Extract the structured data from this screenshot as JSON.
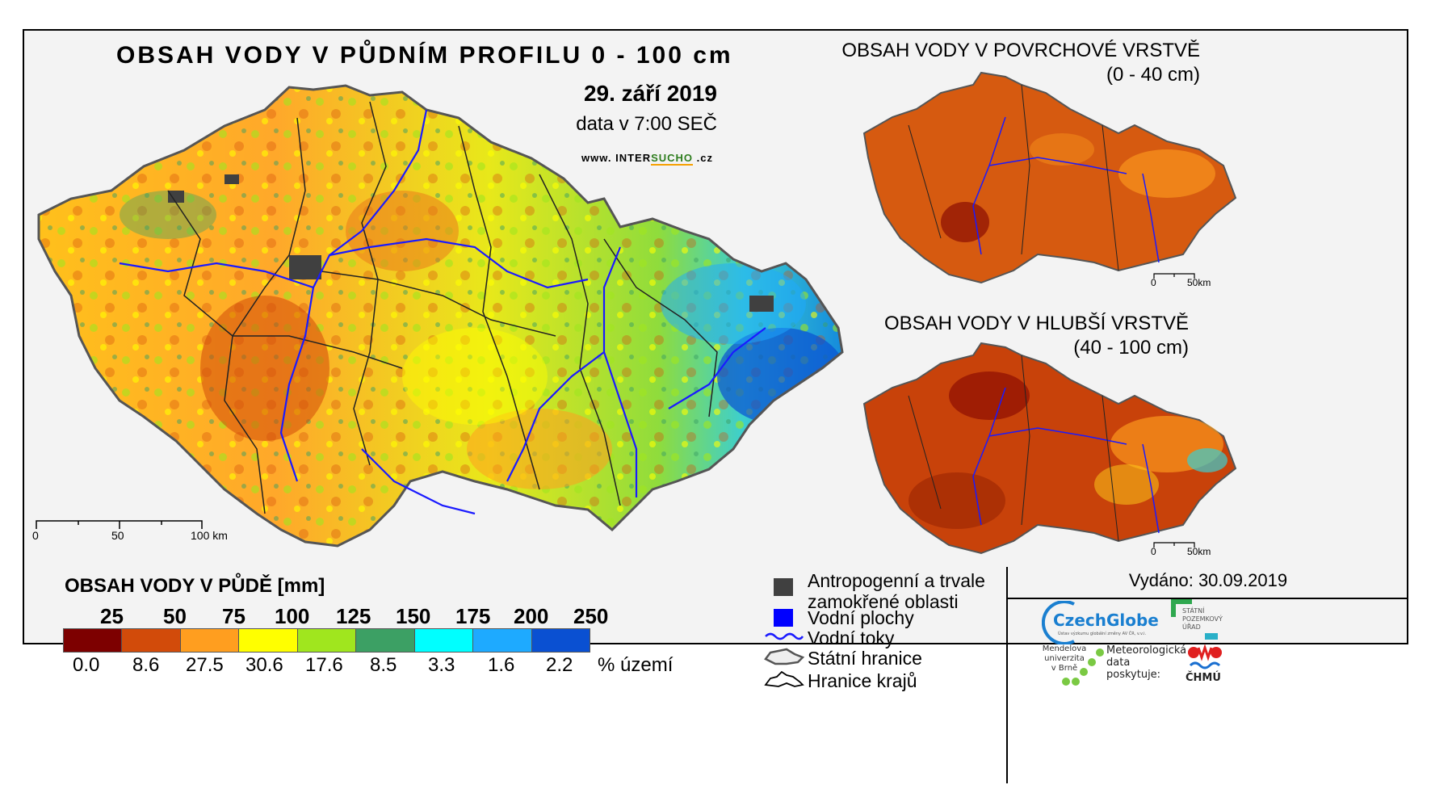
{
  "title": "OBSAH VODY V PŮDNÍM PROFILU 0 - 100 cm",
  "date": "29. září 2019",
  "data_time": "data v 7:00 SEČ",
  "website": {
    "prefix": "www. ",
    "part1": "INTER",
    "part2": "SUCHO",
    "suffix": " .cz"
  },
  "main_scale": {
    "ticks": [
      "0",
      "50",
      "100 km"
    ]
  },
  "inset_top": {
    "title_line1": "OBSAH VODY V POVRCHOVÉ VRSTVĚ",
    "title_line2": "(0 - 40 cm)",
    "scale_ticks": [
      "0",
      "50km"
    ]
  },
  "inset_bottom": {
    "title_line1": "OBSAH VODY V HLUBŠÍ VRSTVĚ",
    "title_line2": "(40 - 100 cm)",
    "scale_ticks": [
      "0",
      "50km"
    ]
  },
  "legend": {
    "title": "OBSAH VODY V PŮDĚ [mm]",
    "thresholds": [
      "25",
      "50",
      "75",
      "100",
      "125",
      "150",
      "175",
      "200",
      "250"
    ],
    "colors": [
      "#7d0000",
      "#d24b0a",
      "#ff9e1f",
      "#ffff00",
      "#a0e61e",
      "#3ca064",
      "#00ffff",
      "#1eaaff",
      "#0a50d2"
    ],
    "percentages": [
      "0.0",
      "8.6",
      "27.5",
      "30.6",
      "17.6",
      "8.5",
      "3.3",
      "1.6",
      "2.2"
    ],
    "percent_unit": "% území"
  },
  "symbols": {
    "anthropogenic_line1": "Antropogenní a trvale",
    "anthropogenic_line2": "zamokřené oblasti",
    "water_bodies": "Vodní plochy",
    "rivers": "Vodní toky",
    "state_border": "Státní hranice",
    "regional_border": "Hranice krajů",
    "anthropogenic_color": "#404040",
    "water_color": "#0000ff"
  },
  "issued": "Vydáno: 30.09.2019",
  "logos": {
    "czechglobe": "CzechGlobe",
    "czechglobe_sub": "Ústav výzkumu globální změny AV ČR, v.v.i.",
    "spu_line1": "STÁTNÍ",
    "spu_line2": "POZEMKOVÝ",
    "spu_line3": "ÚŘAD",
    "mendel_line1": "Mendelova",
    "mendel_line2": "univerzita",
    "mendel_line3": "v Brně",
    "meteo_line1": "Meteorologická",
    "meteo_line2": "data",
    "meteo_line3": "poskytuje:",
    "chmu": "ČHMÚ"
  }
}
